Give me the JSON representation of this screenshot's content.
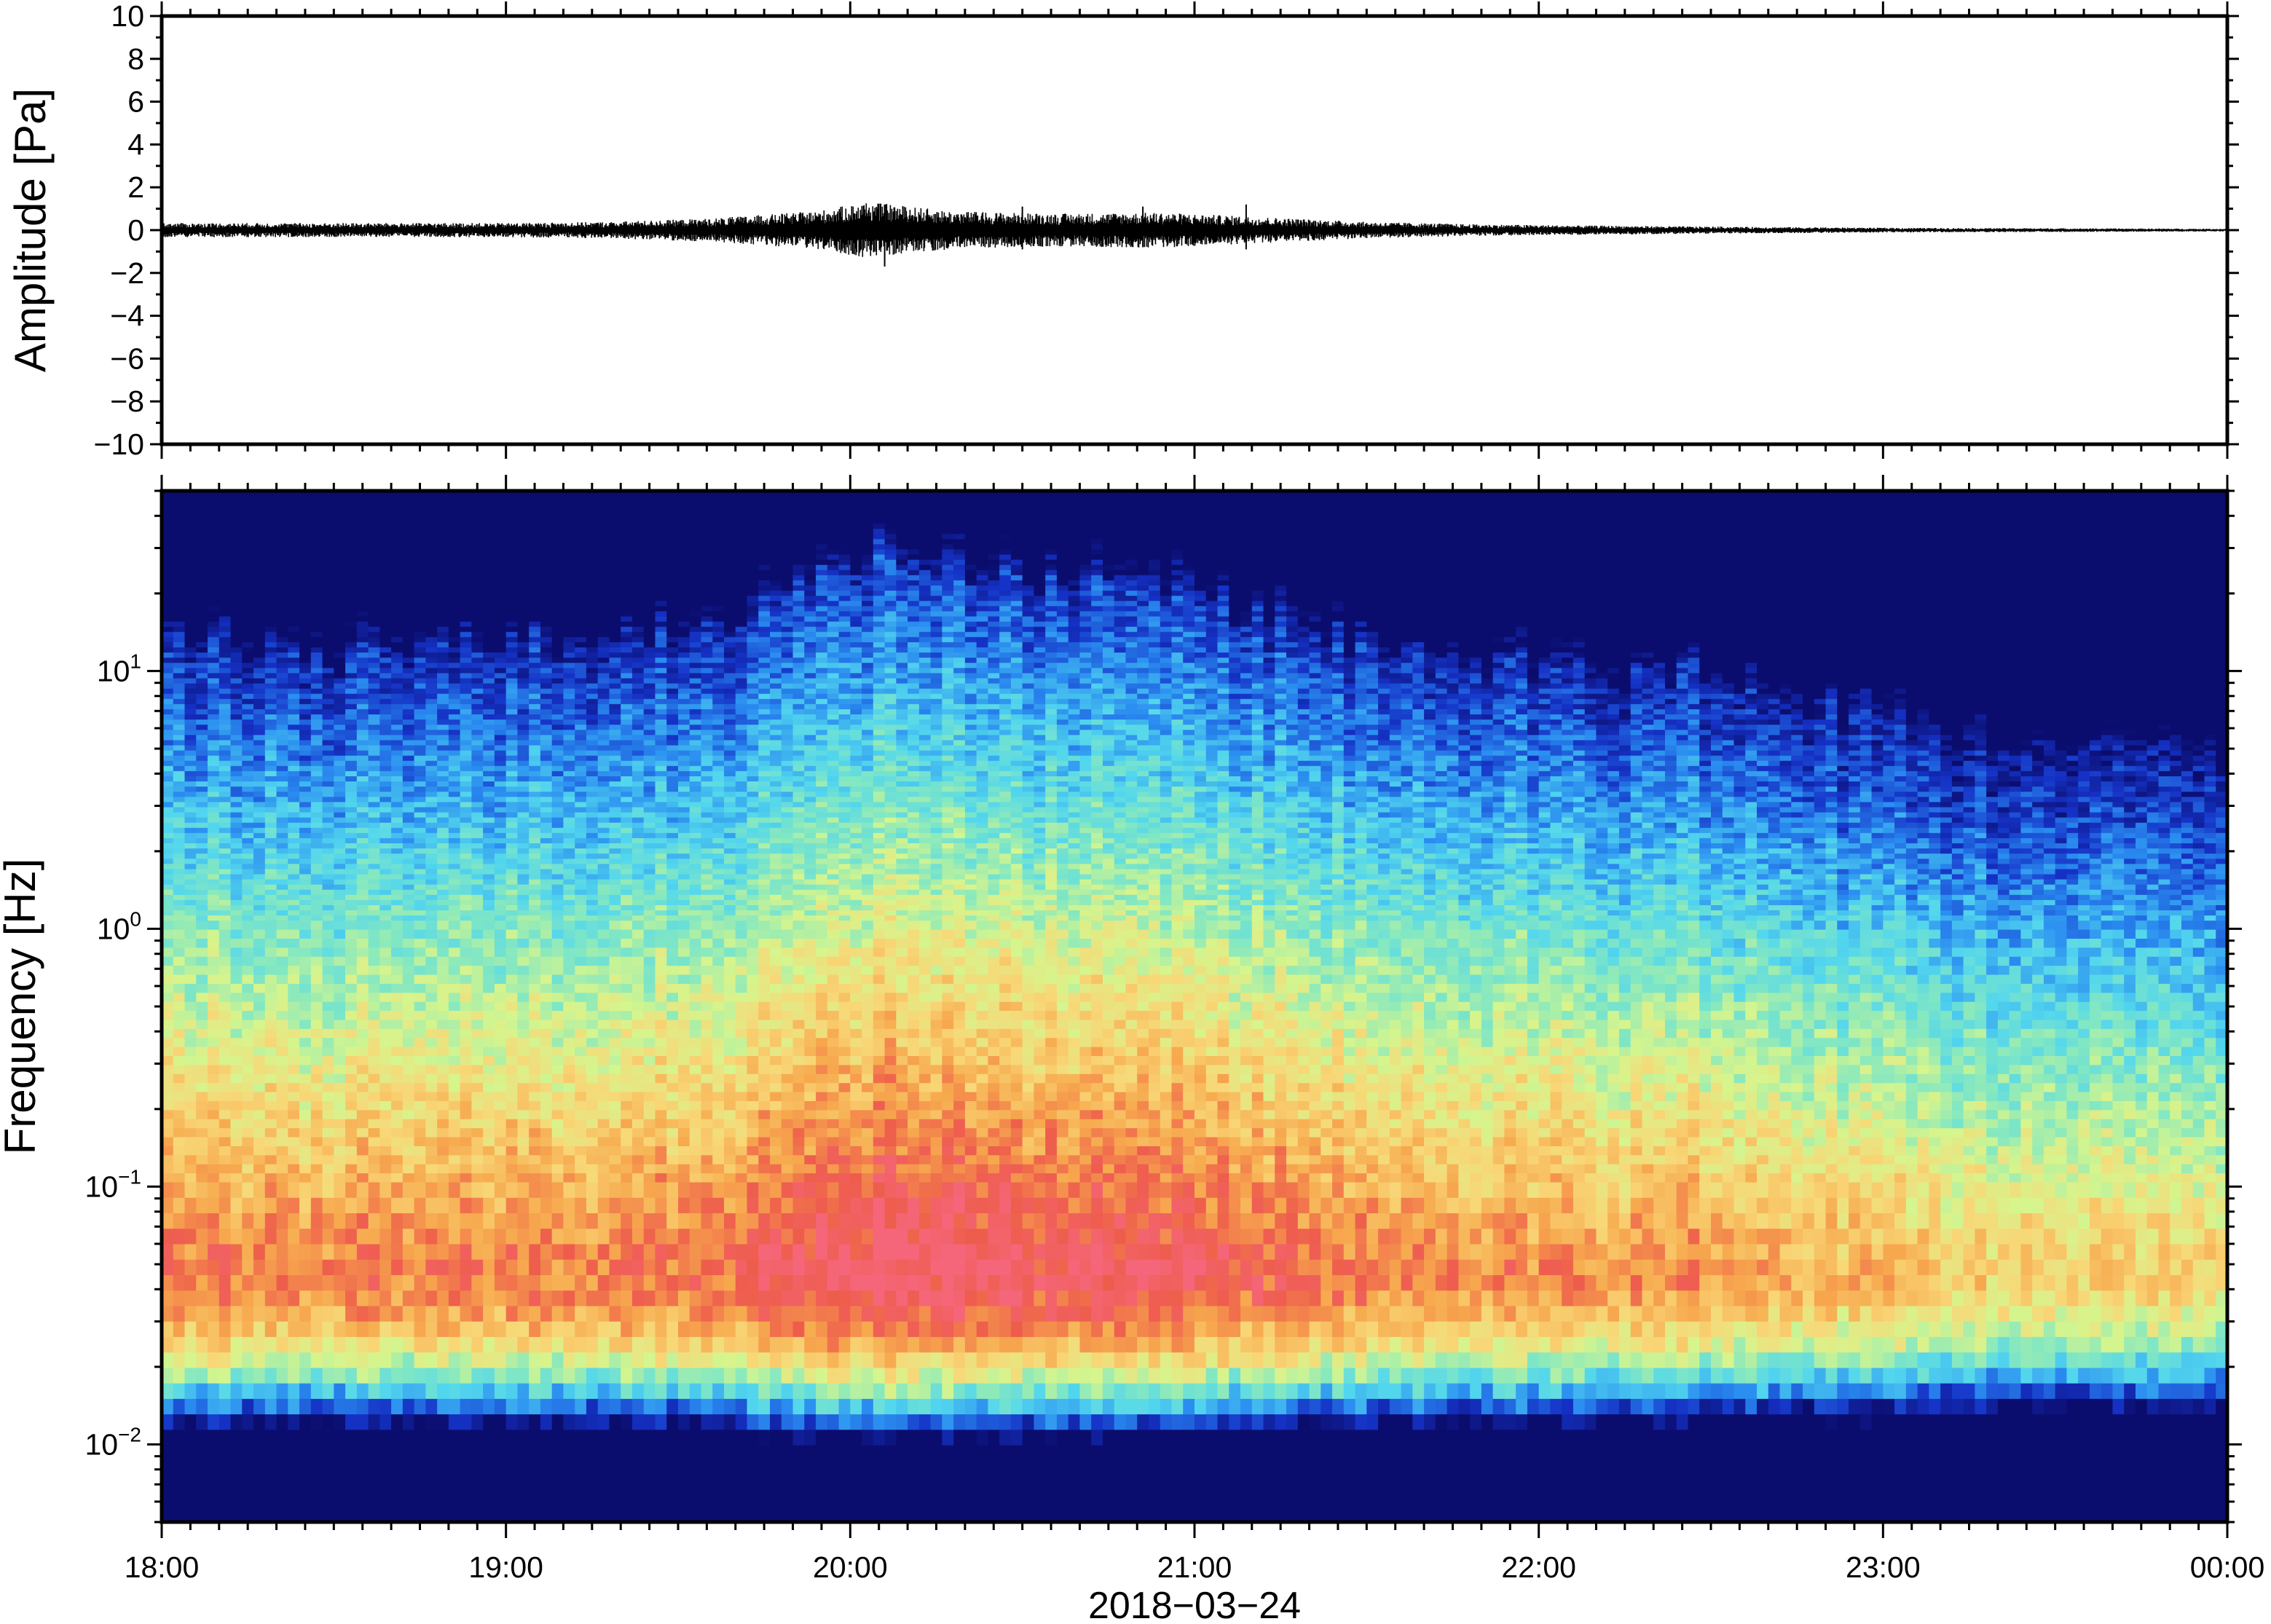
{
  "chart_data": [
    {
      "type": "line",
      "panel": "waveform",
      "ylabel": "Amplitude [Pa]",
      "ylim": [
        -10,
        10
      ],
      "yticks": [
        10,
        8,
        6,
        4,
        2,
        0,
        -2,
        -4,
        -6,
        -8,
        -10
      ],
      "ytick_labels": [
        "10",
        "8",
        "6",
        "4",
        "2",
        "0",
        "−2",
        "−4",
        "−6",
        "−8",
        "−10"
      ],
      "xlim": [
        "18:00",
        "00:00"
      ],
      "series": [
        {
          "color": "#000000",
          "envelope_time_hours": [
            18.0,
            18.5,
            19.0,
            19.3,
            19.6,
            19.9,
            20.05,
            20.3,
            20.6,
            20.9,
            21.2,
            21.5,
            21.8,
            22.1,
            22.5,
            23.0,
            23.5,
            24.0
          ],
          "envelope_amplitude_pa": [
            0.3,
            0.3,
            0.3,
            0.35,
            0.5,
            0.8,
            1.2,
            0.8,
            0.7,
            0.75,
            0.55,
            0.35,
            0.25,
            0.2,
            0.15,
            0.1,
            0.08,
            0.06
          ],
          "spikes": [
            {
              "time_hours": 20.1,
              "min": -1.7,
              "max": 1.2
            },
            {
              "time_hours": 20.5,
              "min": -0.9,
              "max": 1.1
            },
            {
              "time_hours": 20.85,
              "min": -0.8,
              "max": 1.1
            },
            {
              "time_hours": 21.15,
              "min": -0.9,
              "max": 1.2
            }
          ]
        }
      ]
    },
    {
      "type": "heatmap",
      "panel": "spectrogram",
      "ylabel": "Frequency [Hz]",
      "yscale": "log",
      "ylim": [
        0.005,
        50
      ],
      "ytick_labels": [
        {
          "base": "10",
          "exp": "1",
          "value": 10
        },
        {
          "base": "10",
          "exp": "0",
          "value": 1
        },
        {
          "base": "10",
          "exp": "−1",
          "value": 0.1
        },
        {
          "base": "10",
          "exp": "−2",
          "value": 0.01
        }
      ],
      "xtick_labels": [
        "18:00",
        "19:00",
        "20:00",
        "21:00",
        "22:00",
        "23:00",
        "00:00"
      ],
      "xlabel": "2018−03−24",
      "colormap": "rainbow",
      "colormap_stops": [
        "#0b0d6e",
        "#1532c6",
        "#2a8cf0",
        "#52d6ee",
        "#85e8c0",
        "#d6f58d",
        "#f8d777",
        "#f7a94e",
        "#ee5d4c",
        "#f5667a"
      ],
      "peak_frequency_hz": 0.05,
      "relative_energy_by_hour": {
        "time_hours": [
          18.0,
          18.5,
          19.0,
          19.5,
          19.8,
          20.0,
          20.3,
          20.6,
          21.0,
          21.3,
          21.6,
          22.0,
          22.5,
          22.9,
          23.2,
          23.6,
          24.0
        ],
        "energy": [
          0.7,
          0.65,
          0.68,
          0.72,
          0.85,
          1.0,
          0.95,
          0.92,
          0.85,
          0.75,
          0.65,
          0.6,
          0.55,
          0.45,
          0.35,
          0.3,
          0.28
        ]
      }
    }
  ]
}
